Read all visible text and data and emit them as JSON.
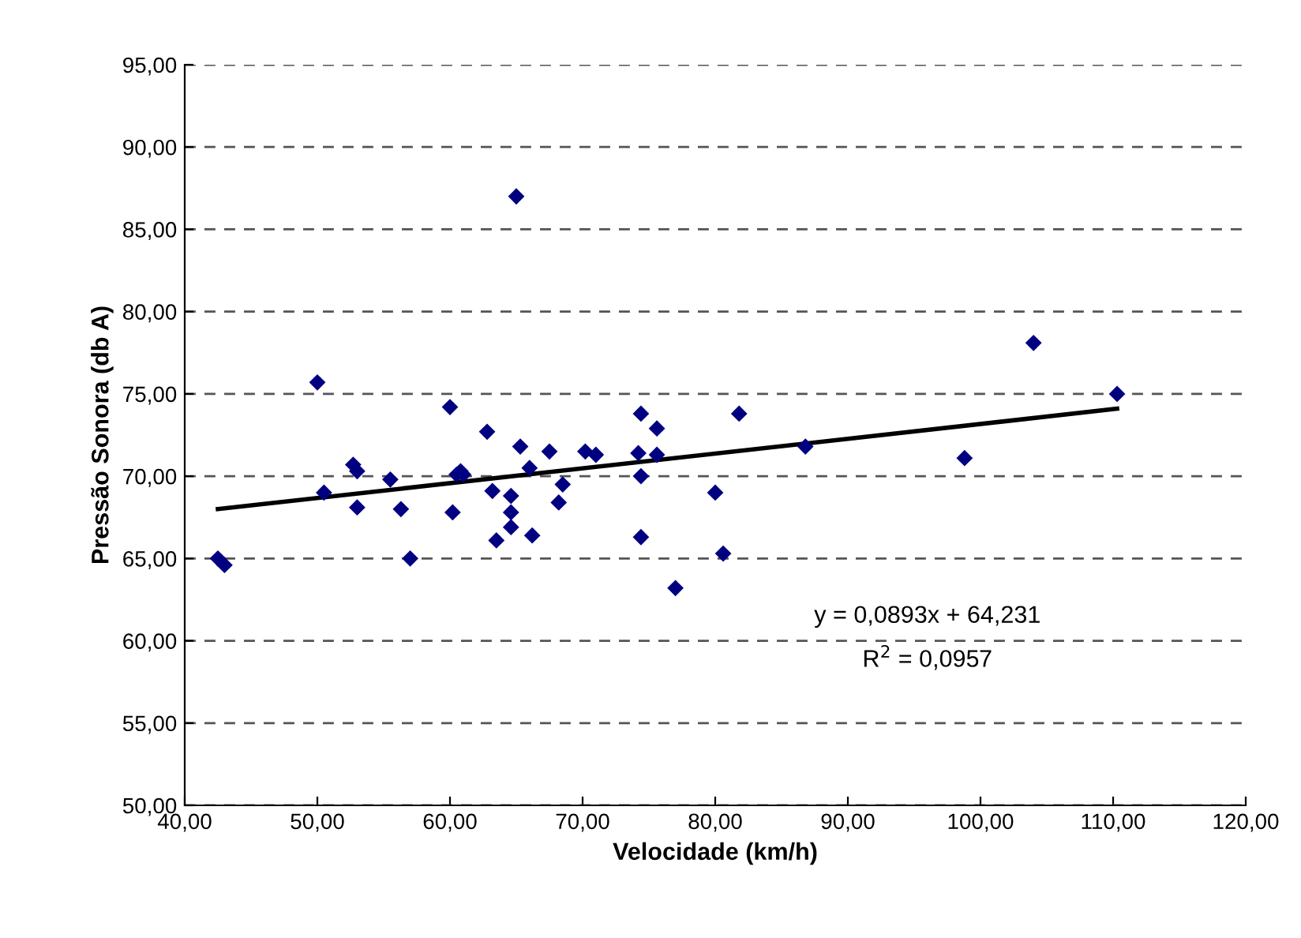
{
  "chart_data": {
    "type": "scatter",
    "xlabel": "Velocidade (km/h)",
    "ylabel": "Pressão Sonora (db A)",
    "xlim": [
      40,
      120
    ],
    "xticks": [
      {
        "value": 40,
        "label": "40,00"
      },
      {
        "value": 50,
        "label": "50,00"
      },
      {
        "value": 60,
        "label": "60,00"
      },
      {
        "value": 70,
        "label": "70,00"
      },
      {
        "value": 80,
        "label": "80,00"
      },
      {
        "value": 90,
        "label": "90,00"
      },
      {
        "value": 100,
        "label": "100,00"
      },
      {
        "value": 110,
        "label": "110,00"
      },
      {
        "value": 120,
        "label": "120,00"
      }
    ],
    "ylim": [
      50,
      95
    ],
    "yticks": [
      {
        "value": 50,
        "label": "50,00"
      },
      {
        "value": 55,
        "label": "55,00"
      },
      {
        "value": 60,
        "label": "60,00"
      },
      {
        "value": 65,
        "label": "65,00"
      },
      {
        "value": 70,
        "label": "70,00"
      },
      {
        "value": 75,
        "label": "75,00"
      },
      {
        "value": 80,
        "label": "80,00"
      },
      {
        "value": 85,
        "label": "85,00"
      },
      {
        "value": 90,
        "label": "90,00"
      },
      {
        "value": 95,
        "label": "95,00"
      }
    ],
    "grid": "y",
    "legend": false,
    "series": [
      {
        "marker": "diamond",
        "color": "#000080",
        "x": [
          42.5,
          43,
          50,
          50.5,
          52.7,
          53,
          53,
          55.5,
          56.3,
          57,
          60,
          60.2,
          60.5,
          60.8,
          61,
          62.8,
          63.2,
          63.5,
          64.6,
          64.6,
          64.6,
          65,
          65.3,
          66,
          66.2,
          67.5,
          68.2,
          68.5,
          70.2,
          71,
          74.2,
          74.4,
          74.4,
          74.4,
          75.6,
          75.6,
          77,
          80,
          80.6,
          81.8,
          86.8,
          98.8,
          104,
          110.3
        ],
        "values": [
          65.0,
          64.6,
          75.7,
          69.0,
          70.7,
          70.3,
          68.1,
          69.8,
          68.0,
          65.0,
          74.2,
          67.8,
          70.1,
          70.3,
          70.1,
          72.7,
          69.1,
          66.1,
          68.8,
          67.8,
          66.9,
          87.0,
          71.8,
          70.5,
          66.4,
          71.5,
          68.4,
          69.5,
          71.5,
          71.3,
          71.4,
          73.8,
          70.0,
          66.3,
          72.9,
          71.3,
          63.2,
          69.0,
          65.3,
          73.8,
          71.8,
          71.1,
          78.1,
          75.0
        ]
      },
      {
        "type": "line",
        "color": "#000000",
        "line_style": "solid",
        "x": [
          42.5,
          110.3
        ],
        "values": [
          68.0,
          74.1
        ]
      }
    ],
    "annotations": [
      "y = 0,0893x + 64,231",
      "R$^{2}$ = 0,0957"
    ]
  }
}
